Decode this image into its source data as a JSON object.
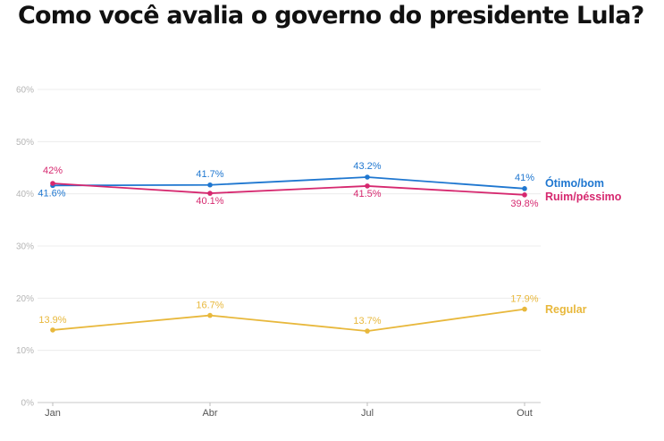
{
  "chart_data": {
    "type": "line",
    "title": "Como você avalia o governo do presidente Lula?",
    "categories": [
      "Jan",
      "Abr",
      "Jul",
      "Out"
    ],
    "ylim": [
      0,
      60
    ],
    "yticks": [
      0,
      10,
      20,
      30,
      40,
      50,
      60
    ],
    "ytick_labels": [
      "0%",
      "10%",
      "20%",
      "30%",
      "40%",
      "50%",
      "60%"
    ],
    "grid": true,
    "series": [
      {
        "name": "Ótimo/bom",
        "color": "#1f77d0",
        "values": [
          41.6,
          41.7,
          43.2,
          41
        ],
        "labels": [
          "41.6%",
          "41.7%",
          "43.2%",
          "41%"
        ]
      },
      {
        "name": "Ruim/péssimo",
        "color": "#d6286f",
        "values": [
          42,
          40.1,
          41.5,
          39.8
        ],
        "labels": [
          "42%",
          "40.1%",
          "41.5%",
          "39.8%"
        ]
      },
      {
        "name": "Regular",
        "color": "#e8b83c",
        "values": [
          13.9,
          16.7,
          13.7,
          17.9
        ],
        "labels": [
          "13.9%",
          "16.7%",
          "13.7%",
          "17.9%"
        ]
      }
    ]
  }
}
